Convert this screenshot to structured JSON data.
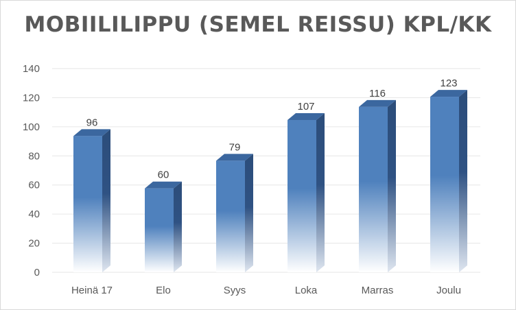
{
  "chart_data": {
    "type": "bar",
    "title": "MOBIILILIPPU (SEMEL REISSU) KPL/KK",
    "xlabel": "",
    "ylabel": "",
    "categories": [
      "Heinä 17",
      "Elo",
      "Syys",
      "Loka",
      "Marras",
      "Joulu"
    ],
    "values": [
      96,
      60,
      79,
      107,
      116,
      123
    ],
    "ylim": [
      0,
      140
    ],
    "yticks": [
      0,
      20,
      40,
      60,
      80,
      100,
      120,
      140
    ],
    "grid": true,
    "legend": "none",
    "colors": {
      "bar_top": "#4f81bd",
      "bar_bottom": "#ffffff",
      "bar_side": "#2f4f7f",
      "bar_cap": "#3b679f",
      "grid": "#e6e6e6"
    }
  }
}
